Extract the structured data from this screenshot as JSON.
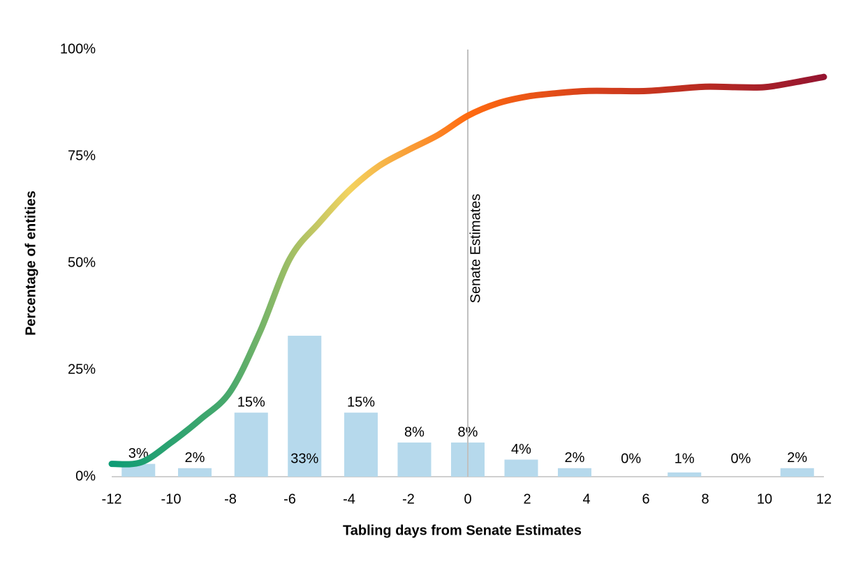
{
  "chart_data": {
    "type": "combo",
    "x_label": "Tabling days from Senate Estimates",
    "y_label": "Percentage of entities",
    "xlim": [
      -12,
      12
    ],
    "xticks": [
      -12,
      -10,
      -8,
      -6,
      -4,
      -2,
      0,
      2,
      4,
      6,
      8,
      10,
      12
    ],
    "ylim": [
      0,
      100
    ],
    "yticks": [
      {
        "value": 0,
        "label": "0%"
      },
      {
        "value": 25,
        "label": "25%"
      },
      {
        "value": 50,
        "label": "50%"
      },
      {
        "value": 75,
        "label": "75%"
      },
      {
        "value": 100,
        "label": "100%"
      }
    ],
    "grid": false,
    "series": [
      {
        "type": "bar",
        "color": "#b6d9ec",
        "x": [
          -11.1,
          -9.2,
          -7.3,
          -5.5,
          -3.6,
          -1.8,
          0,
          1.8,
          3.6,
          5.5,
          7.3,
          9.2,
          11.1
        ],
        "values": [
          3,
          2,
          15,
          33,
          15,
          8,
          8,
          4,
          2,
          0,
          1,
          0,
          2
        ],
        "value_labels": [
          "3%",
          "2%",
          "15%",
          "33%",
          "15%",
          "8%",
          "8%",
          "4%",
          "2%",
          "0%",
          "1%",
          "0%",
          "2%"
        ]
      },
      {
        "type": "line",
        "colors": [
          "#0e9c75",
          "#4aa96c",
          "#f3d35f",
          "#ff6a10",
          "#d8421b",
          "#b82a22",
          "#951530"
        ],
        "x": [
          -12,
          -11,
          -10,
          -9,
          -8,
          -7,
          -6,
          -5,
          -4,
          -3,
          -2,
          -1,
          0,
          1,
          2,
          3,
          4,
          5,
          6,
          7,
          8,
          9,
          10,
          11,
          12
        ],
        "values": [
          3,
          3.4,
          8,
          13.5,
          20,
          34,
          51,
          59.5,
          67,
          72.7,
          76.5,
          80,
          84.5,
          87.4,
          89,
          89.8,
          90.3,
          90.3,
          90.3,
          90.8,
          91.3,
          91.2,
          91.2,
          92.3,
          93.6
        ]
      }
    ],
    "annotations": [
      {
        "x": 0,
        "label": "Senate Estimates",
        "color": "#c0c0c0"
      }
    ]
  }
}
